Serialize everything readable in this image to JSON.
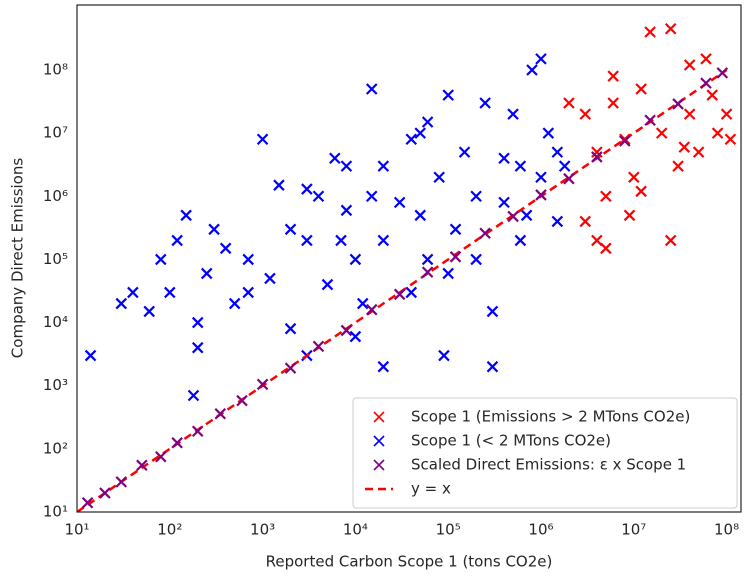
{
  "chart_data": {
    "type": "scatter",
    "x_label": "Reported Carbon Scope 1 (tons CO2e)",
    "y_label": "Company Direct Emissions",
    "log_x": true,
    "log_y": true,
    "grid": false,
    "legend": "lower right",
    "xlim": [
      10,
      143000000
    ],
    "ylim": [
      10,
      1070000000
    ],
    "xticks": [
      {
        "value": 10,
        "label": "10¹"
      },
      {
        "value": 100,
        "label": "10²"
      },
      {
        "value": 1000,
        "label": "10³"
      },
      {
        "value": 10000,
        "label": "10⁴"
      },
      {
        "value": 100000,
        "label": "10⁵"
      },
      {
        "value": 1000000,
        "label": "10⁶"
      },
      {
        "value": 10000000,
        "label": "10⁷"
      },
      {
        "value": 100000000,
        "label": "10⁸"
      }
    ],
    "yticks": [
      {
        "value": 10,
        "label": "10¹"
      },
      {
        "value": 100,
        "label": "10²"
      },
      {
        "value": 1000,
        "label": "10³"
      },
      {
        "value": 10000,
        "label": "10⁴"
      },
      {
        "value": 100000,
        "label": "10⁵"
      },
      {
        "value": 1000000,
        "label": "10⁶"
      },
      {
        "value": 10000000,
        "label": "10⁷"
      },
      {
        "value": 100000000,
        "label": "10⁸"
      }
    ],
    "series": [
      {
        "name": "Scope 1 (Emissions > 2 MTons CO2e)",
        "color": "#ff0000",
        "marker": "x",
        "x": [
          3000000,
          4000000,
          5000000,
          3000000,
          4000000,
          5000000,
          6000000,
          8000000,
          10000000,
          12000000,
          15000000,
          20000000,
          25000000,
          25000000,
          30000000,
          40000000,
          40000000,
          50000000,
          60000000,
          70000000,
          80000000,
          100000000,
          110000000,
          9000000,
          6000000,
          12000000,
          35000000,
          2000000
        ],
        "values": [
          20000000,
          5000000,
          1000000,
          400000,
          200000,
          150000,
          30000000,
          8000000,
          2000000,
          50000000,
          400000000,
          10000000,
          450000000,
          200000,
          3000000,
          120000000,
          20000000,
          5000000,
          150000000,
          40000000,
          10000000,
          20000000,
          8000000,
          500000,
          80000000,
          1200000,
          6000000,
          30000000
        ]
      },
      {
        "name": "Scope 1 (< 2 MTons CO2e)",
        "color": "#0000ff",
        "marker": "x",
        "x": [
          14,
          30,
          40,
          60,
          80,
          100,
          150,
          120,
          200,
          200,
          180,
          300,
          400,
          500,
          700,
          1000,
          1200,
          1500,
          2000,
          2000,
          3000,
          3000,
          4000,
          5000,
          6000,
          8000,
          10000,
          10000,
          12000,
          15000,
          20000,
          20000,
          20000,
          30000,
          40000,
          50000,
          50000,
          60000,
          80000,
          100000,
          100000,
          120000,
          150000,
          200000,
          200000,
          250000,
          300000,
          300000,
          400000,
          500000,
          600000,
          700000,
          800000,
          1000000,
          1000000,
          1200000,
          1500000,
          1800000,
          1500000,
          7000,
          700,
          250,
          3000,
          8000,
          40000,
          15000,
          90000,
          60000,
          400000,
          600000
        ],
        "values": [
          3000,
          20000,
          30000,
          15000,
          100000,
          30000,
          500000,
          200000,
          4000,
          10000,
          700,
          300000,
          150000,
          20000,
          100000,
          8000000,
          50000,
          1500000,
          300000,
          8000,
          200000,
          3000,
          1000000,
          40000,
          4000000,
          600000,
          100000,
          6000,
          20000,
          50000000,
          3000000,
          200000,
          2000,
          800000,
          30000,
          10000000,
          500000,
          100000,
          2000000,
          60000,
          40000000,
          300000,
          5000000,
          1000000,
          100000,
          30000000,
          2000,
          15000,
          800000,
          20000000,
          3000000,
          500000,
          100000000,
          150000000,
          2000000,
          10000000,
          5000000,
          3000000,
          400000,
          200000,
          30000,
          60000,
          1300000,
          3000000,
          8000000,
          1000000,
          3000,
          15000000,
          4000000,
          200000
        ]
      },
      {
        "name": "Scaled Direct Emissions: ε x Scope 1",
        "color": "#800080",
        "marker": "x",
        "x": [
          13,
          20,
          30,
          50,
          80,
          120,
          200,
          350,
          600,
          1000,
          2000,
          4000,
          8000,
          15000,
          30000,
          60000,
          120000,
          250000,
          500000,
          1000000,
          2000000,
          4000000,
          8000000,
          15000000,
          30000000,
          60000000,
          90000000
        ],
        "values": [
          14,
          20,
          30,
          55,
          75,
          125,
          190,
          360,
          580,
          1050,
          1900,
          4200,
          7500,
          16000,
          28000,
          63000,
          110000,
          260000,
          480000,
          1050000,
          1900000,
          4200000,
          7500000,
          16000000,
          29000000,
          62000000,
          90000000
        ]
      },
      {
        "name": "y = x",
        "color": "#ff0000",
        "marker": "dashed-line",
        "x": [
          10,
          100000000
        ],
        "values": [
          10,
          100000000
        ]
      }
    ]
  }
}
